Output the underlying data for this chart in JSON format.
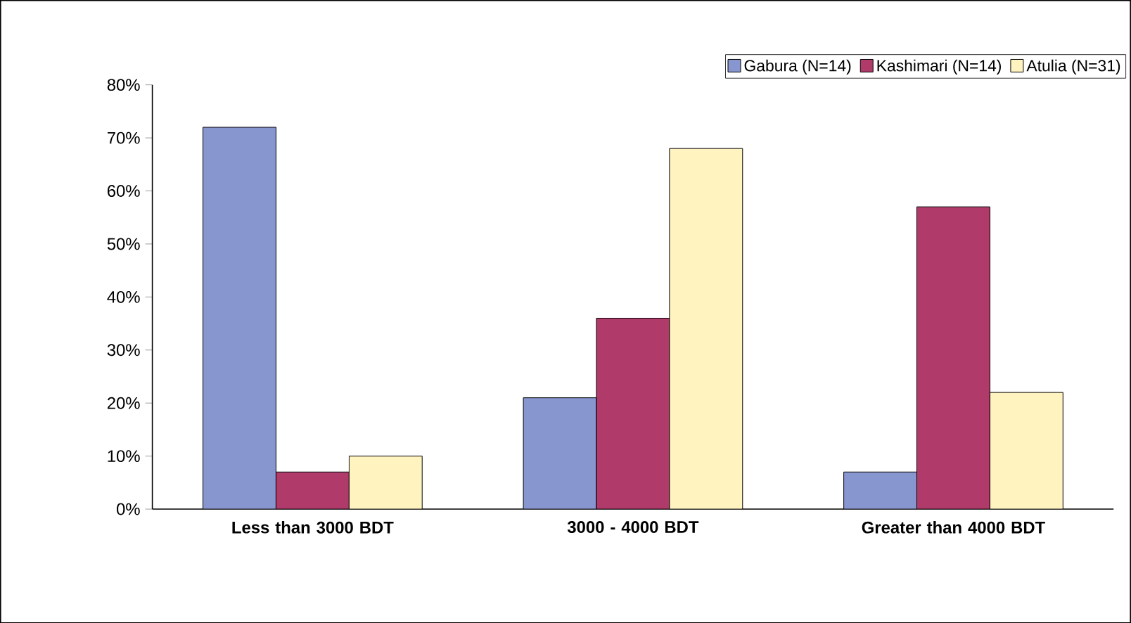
{
  "chart_data": {
    "type": "bar",
    "categories": [
      "Less than 3000 BDT",
      "3000 - 4000 BDT",
      "Greater than 4000 BDT"
    ],
    "series": [
      {
        "name": "Gabura (N=14)",
        "color": "#8896d0",
        "values": [
          72,
          21,
          7
        ]
      },
      {
        "name": "Kashimari (N=14)",
        "color": "#b03a6a",
        "values": [
          7,
          36,
          57
        ]
      },
      {
        "name": "Atulia (N=31)",
        "color": "#fff3c0",
        "values": [
          10,
          68,
          22
        ]
      }
    ],
    "ylim": [
      0,
      80
    ],
    "yticks": [
      {
        "value": 0,
        "label": "0%"
      },
      {
        "value": 10,
        "label": "10%"
      },
      {
        "value": 20,
        "label": "20%"
      },
      {
        "value": 30,
        "label": "30%"
      },
      {
        "value": 40,
        "label": "40%"
      },
      {
        "value": 50,
        "label": "50%"
      },
      {
        "value": 60,
        "label": "60%"
      },
      {
        "value": 70,
        "label": "70%"
      },
      {
        "value": 80,
        "label": "80%"
      }
    ],
    "grid": false,
    "legend": "top right"
  }
}
